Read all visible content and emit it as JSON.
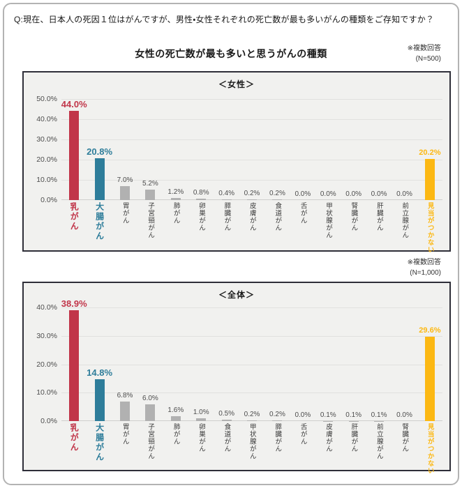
{
  "header": {
    "question": "Q:現在、日本人の死因１位はがんですが、男性・女性それぞれの死亡数が最も多いがんの種類をご存知ですか？"
  },
  "title": "女性の死亡数が最も多いと思うがんの種類",
  "colors": {
    "red": "#c13549",
    "teal": "#2e7d9a",
    "gray": "#b1b1b1",
    "yellow": "#fcb813",
    "text_dark": "#1a1a1a",
    "plot_bg": "#f1f1ef",
    "box_border": "#2e2e38",
    "frame_border": "#b3b3b3"
  },
  "chart_data": [
    {
      "type": "bar",
      "panel_title": "＜女性＞",
      "note": "※複数回答",
      "n": "(N=500)",
      "ylabel": "",
      "xlabel": "",
      "ylim": [
        0,
        50
      ],
      "ytick_step": 10,
      "ytick_suffix": ".0%",
      "grid": true,
      "categories": [
        "乳がん",
        "大腸がん",
        "胃がん",
        "子宮頸がん",
        "肺がん",
        "卵巣がん",
        "膵臓がん",
        "皮膚がん",
        "食道がん",
        "舌がん",
        "甲状腺がん",
        "腎臓がん",
        "肝臓がん",
        "前立腺がん",
        "見当がつかない"
      ],
      "values": [
        44.0,
        20.8,
        7.0,
        5.2,
        1.2,
        0.8,
        0.4,
        0.2,
        0.2,
        0.0,
        0.0,
        0.0,
        0.0,
        0.0,
        20.2
      ],
      "value_labels": [
        "44.0%",
        "20.8%",
        "7.0%",
        "5.2%",
        "1.2%",
        "0.8%",
        "0.4%",
        "0.2%",
        "0.2%",
        "0.0%",
        "0.0%",
        "0.0%",
        "0.0%",
        "0.0%",
        "20.2%"
      ],
      "styles": [
        "red",
        "teal",
        "gray",
        "gray",
        "gray",
        "gray",
        "gray",
        "gray",
        "gray",
        "gray",
        "gray",
        "gray",
        "gray",
        "gray",
        "yellow"
      ]
    },
    {
      "type": "bar",
      "panel_title": "＜全体＞",
      "note": "※複数回答",
      "n": "(N=1,000)",
      "ylabel": "",
      "xlabel": "",
      "ylim": [
        0,
        40
      ],
      "ytick_step": 10,
      "ytick_suffix": ".0%",
      "grid": true,
      "categories": [
        "乳がん",
        "大腸がん",
        "胃がん",
        "子宮頸がん",
        "肺がん",
        "卵巣がん",
        "食道がん",
        "甲状腺がん",
        "膵臓がん",
        "舌がん",
        "皮膚がん",
        "肝臓がん",
        "前立腺がん",
        "腎臓がん",
        "見当がつかない"
      ],
      "values": [
        38.9,
        14.8,
        6.8,
        6.0,
        1.6,
        1.0,
        0.5,
        0.2,
        0.2,
        0.0,
        0.1,
        0.1,
        0.1,
        0.0,
        29.6
      ],
      "value_labels": [
        "38.9%",
        "14.8%",
        "6.8%",
        "6.0%",
        "1.6%",
        "1.0%",
        "0.5%",
        "0.2%",
        "0.2%",
        "0.0%",
        "0.1%",
        "0.1%",
        "0.1%",
        "0.0%",
        "29.6%"
      ],
      "styles": [
        "red",
        "teal",
        "gray",
        "gray",
        "gray",
        "gray",
        "gray",
        "gray",
        "gray",
        "gray",
        "gray",
        "gray",
        "gray",
        "gray",
        "yellow"
      ]
    }
  ]
}
